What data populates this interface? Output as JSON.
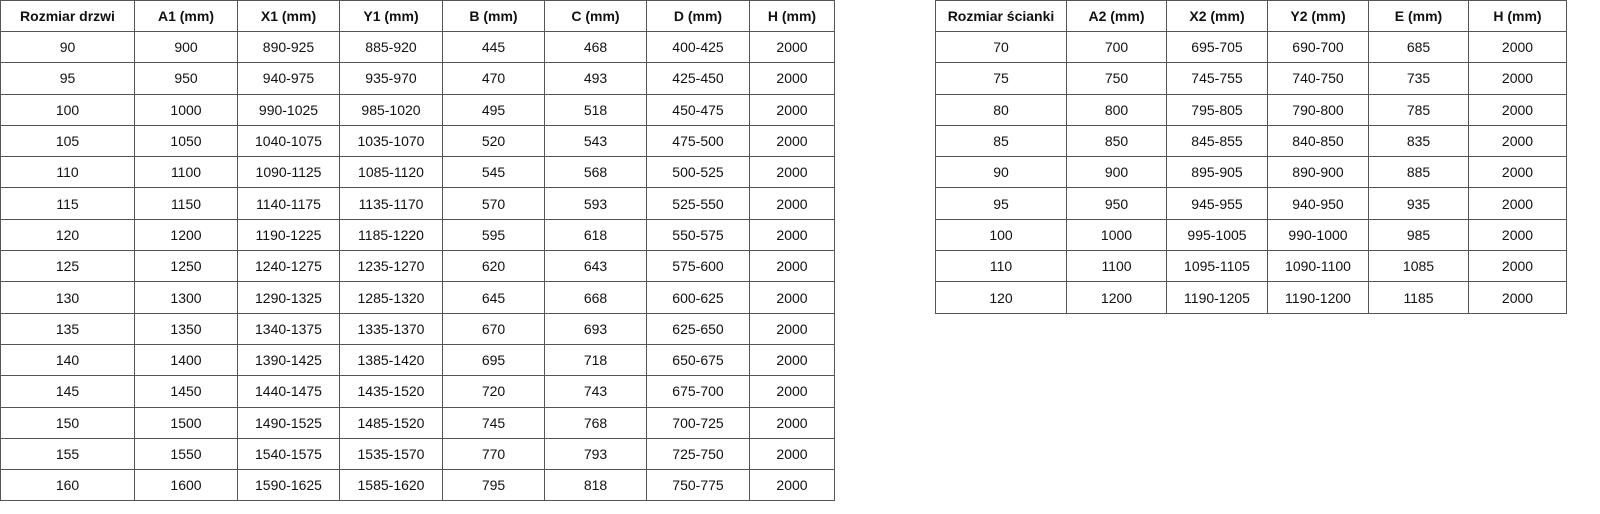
{
  "doors_table": {
    "headers": [
      "Rozmiar drzwi",
      "A1 (mm)",
      "X1 (mm)",
      "Y1 (mm)",
      "B (mm)",
      "C (mm)",
      "D (mm)",
      "H (mm)"
    ],
    "rows": [
      [
        "90",
        "900",
        "890-925",
        "885-920",
        "445",
        "468",
        "400-425",
        "2000"
      ],
      [
        "95",
        "950",
        "940-975",
        "935-970",
        "470",
        "493",
        "425-450",
        "2000"
      ],
      [
        "100",
        "1000",
        "990-1025",
        "985-1020",
        "495",
        "518",
        "450-475",
        "2000"
      ],
      [
        "105",
        "1050",
        "1040-1075",
        "1035-1070",
        "520",
        "543",
        "475-500",
        "2000"
      ],
      [
        "110",
        "1100",
        "1090-1125",
        "1085-1120",
        "545",
        "568",
        "500-525",
        "2000"
      ],
      [
        "115",
        "1150",
        "1140-1175",
        "1135-1170",
        "570",
        "593",
        "525-550",
        "2000"
      ],
      [
        "120",
        "1200",
        "1190-1225",
        "1185-1220",
        "595",
        "618",
        "550-575",
        "2000"
      ],
      [
        "125",
        "1250",
        "1240-1275",
        "1235-1270",
        "620",
        "643",
        "575-600",
        "2000"
      ],
      [
        "130",
        "1300",
        "1290-1325",
        "1285-1320",
        "645",
        "668",
        "600-625",
        "2000"
      ],
      [
        "135",
        "1350",
        "1340-1375",
        "1335-1370",
        "670",
        "693",
        "625-650",
        "2000"
      ],
      [
        "140",
        "1400",
        "1390-1425",
        "1385-1420",
        "695",
        "718",
        "650-675",
        "2000"
      ],
      [
        "145",
        "1450",
        "1440-1475",
        "1435-1520",
        "720",
        "743",
        "675-700",
        "2000"
      ],
      [
        "150",
        "1500",
        "1490-1525",
        "1485-1520",
        "745",
        "768",
        "700-725",
        "2000"
      ],
      [
        "155",
        "1550",
        "1540-1575",
        "1535-1570",
        "770",
        "793",
        "725-750",
        "2000"
      ],
      [
        "160",
        "1600",
        "1590-1625",
        "1585-1620",
        "795",
        "818",
        "750-775",
        "2000"
      ]
    ]
  },
  "walls_table": {
    "headers": [
      "Rozmiar ścianki",
      "A2 (mm)",
      "X2 (mm)",
      "Y2 (mm)",
      "E (mm)",
      "H (mm)"
    ],
    "rows": [
      [
        "70",
        "700",
        "695-705",
        "690-700",
        "685",
        "2000"
      ],
      [
        "75",
        "750",
        "745-755",
        "740-750",
        "735",
        "2000"
      ],
      [
        "80",
        "800",
        "795-805",
        "790-800",
        "785",
        "2000"
      ],
      [
        "85",
        "850",
        "845-855",
        "840-850",
        "835",
        "2000"
      ],
      [
        "90",
        "900",
        "895-905",
        "890-900",
        "885",
        "2000"
      ],
      [
        "95",
        "950",
        "945-955",
        "940-950",
        "935",
        "2000"
      ],
      [
        "100",
        "1000",
        "995-1005",
        "990-1000",
        "985",
        "2000"
      ],
      [
        "110",
        "1100",
        "1095-1105",
        "1090-1100",
        "1085",
        "2000"
      ],
      [
        "120",
        "1200",
        "1190-1205",
        "1190-1200",
        "1185",
        "2000"
      ]
    ]
  }
}
